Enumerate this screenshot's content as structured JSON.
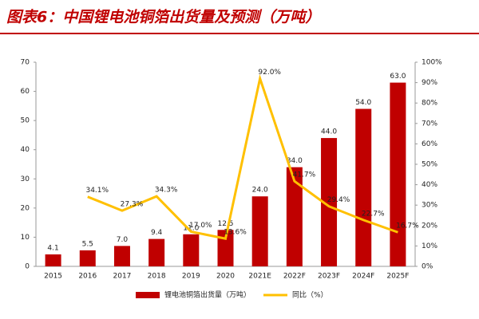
{
  "chart_data": {
    "type": "bar-line",
    "title": "图表6：中国锂电池铜箔出货量及预测（万吨）",
    "categories": [
      "2015",
      "2016",
      "2017",
      "2018",
      "2019",
      "2020",
      "2021E",
      "2022F",
      "2023F",
      "2024F",
      "2025F"
    ],
    "series": [
      {
        "name": "锂电池铜箔出货量（万吨）",
        "type": "bar",
        "color": "#c00000",
        "values": [
          4.1,
          5.5,
          7.0,
          9.4,
          11.0,
          12.5,
          24.0,
          34.0,
          44.0,
          54.0,
          63.0
        ],
        "value_labels": [
          "4.1",
          "5.5",
          "7.0",
          "9.4",
          "11.0",
          "12.5",
          "24.0",
          "34.0",
          "44.0",
          "54.0",
          "63.0"
        ]
      },
      {
        "name": "同比（%）",
        "type": "line",
        "axis": "y2",
        "color": "#ffc000",
        "values": [
          null,
          34.1,
          27.3,
          34.3,
          17.0,
          13.6,
          92.0,
          41.7,
          29.4,
          22.7,
          16.7
        ],
        "value_labels": [
          null,
          "34.1%",
          "27.3%",
          "34.3%",
          "17.0%",
          "13.6%",
          "92.0%",
          "41.7%",
          "29.4%",
          "22.7%",
          "16.7%"
        ]
      }
    ],
    "ylim": [
      0,
      70
    ],
    "yticks": [
      0,
      10,
      20,
      30,
      40,
      50,
      60,
      70
    ],
    "y2lim": [
      0,
      100
    ],
    "y2ticks": [
      {
        "value": 0,
        "label": "0%"
      },
      {
        "value": 10,
        "label": "10%"
      },
      {
        "value": 20,
        "label": "20%"
      },
      {
        "value": 30,
        "label": "30%"
      },
      {
        "value": 40,
        "label": "40%"
      },
      {
        "value": 50,
        "label": "50%"
      },
      {
        "value": 60,
        "label": "60%"
      },
      {
        "value": 70,
        "label": "70%"
      },
      {
        "value": 80,
        "label": "80%"
      },
      {
        "value": 90,
        "label": "90%"
      },
      {
        "value": 100,
        "label": "100%"
      }
    ],
    "grid": false,
    "legend": "bottom"
  }
}
